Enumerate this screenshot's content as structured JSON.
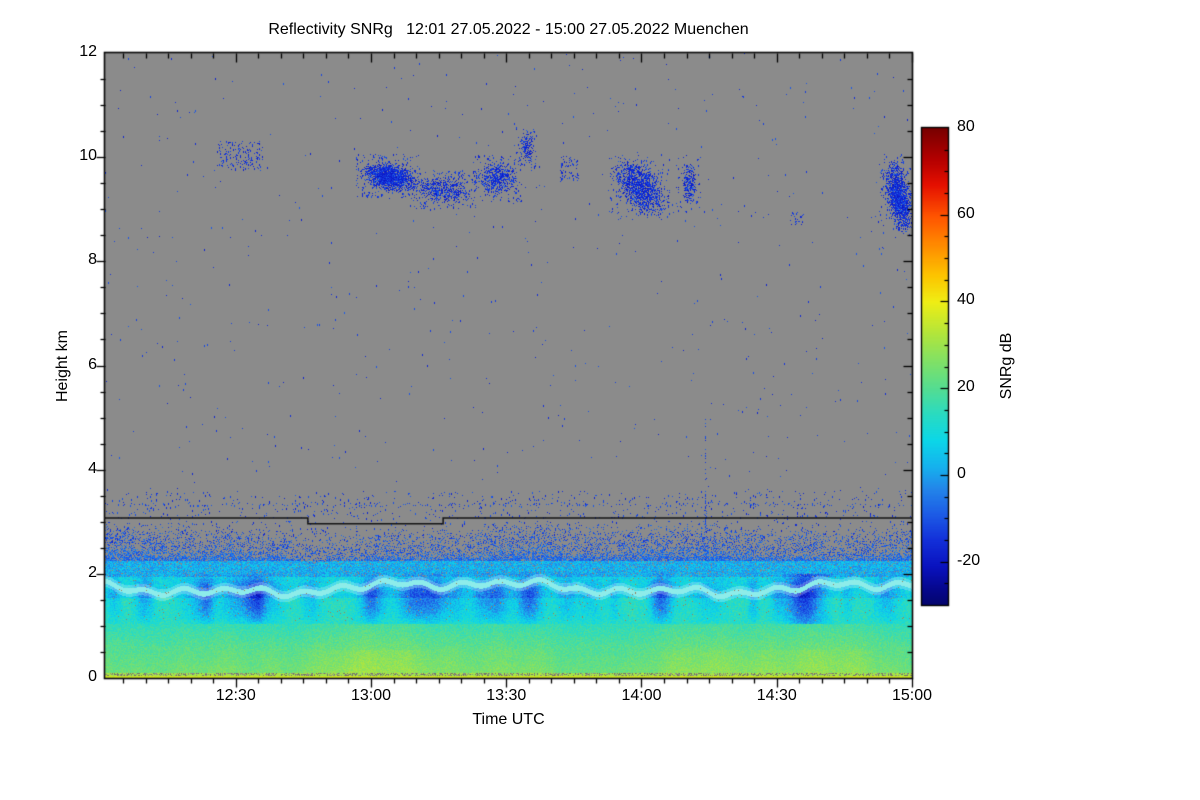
{
  "chart_data": {
    "type": "heatmap",
    "title": "Reflectivity SNRg   12:01 27.05.2022 - 15:00 27.05.2022 Muenchen",
    "xlabel": "Time UTC",
    "ylabel": "Height km",
    "station": "Muenchen",
    "time_start": "12:01 27.05.2022",
    "time_end": "15:00 27.05.2022",
    "x_start_minutes": 1,
    "x_end_minutes": 180,
    "x_major_ticks": [
      {
        "label": "12:30",
        "minutes": 30
      },
      {
        "label": "13:00",
        "minutes": 60
      },
      {
        "label": "13:30",
        "minutes": 90
      },
      {
        "label": "14:00",
        "minutes": 120
      },
      {
        "label": "14:30",
        "minutes": 150
      },
      {
        "label": "15:00",
        "minutes": 180
      }
    ],
    "x_minor_step_minutes": 5,
    "y_ticks": [
      0,
      2,
      4,
      6,
      8,
      10,
      12
    ],
    "y_minor_step_km": 0.5,
    "ylim": [
      0,
      12
    ],
    "grid": false,
    "legend_position": "right-colorbar",
    "colorbar": {
      "label": "SNRg dB",
      "range": [
        -30,
        80
      ],
      "major_ticks": [
        80,
        60,
        40,
        20,
        0,
        -20
      ],
      "minor_step": 5,
      "stops": [
        [
          -30,
          "#04056c"
        ],
        [
          -26,
          "#060890"
        ],
        [
          -21,
          "#0a13c0"
        ],
        [
          -15,
          "#1330da"
        ],
        [
          -9,
          "#1d5ce6"
        ],
        [
          -3,
          "#2387ea"
        ],
        [
          2,
          "#16b2ee"
        ],
        [
          8,
          "#0cd7e8"
        ],
        [
          14,
          "#2adbc2"
        ],
        [
          20,
          "#55dd92"
        ],
        [
          26,
          "#7fe168"
        ],
        [
          33,
          "#b5e63a"
        ],
        [
          40,
          "#f0ee15"
        ],
        [
          46,
          "#fdc500"
        ],
        [
          53,
          "#ff8c00"
        ],
        [
          60,
          "#ff5200"
        ],
        [
          67,
          "#e51000"
        ],
        [
          73,
          "#b30000"
        ],
        [
          80,
          "#790000"
        ]
      ]
    },
    "no_data_color": "#8b8b8b",
    "mixing_line": {
      "color": "#141414",
      "points_min_km": [
        [
          1,
          3.07
        ],
        [
          46,
          3.07
        ],
        [
          46,
          2.96
        ],
        [
          76,
          2.96
        ],
        [
          76,
          3.07
        ],
        [
          180,
          3.07
        ]
      ]
    },
    "generation": {
      "seed": 1337,
      "boundary_layer": {
        "top_km_base": 2.42,
        "top_km_variation": 0.17,
        "dome": {
          "t_center": 137,
          "t_sigma": 9,
          "extra_km": 0.22
        },
        "surface_db": 34,
        "low_db": 26,
        "mid_db": 14,
        "band_db": 9,
        "upper_db": 2,
        "fringe_db": -7,
        "yellow_boost_db": 5,
        "bright_band": {
          "h_km": 1.74,
          "amp_km": 0.16,
          "ripple_km": 0.05
        },
        "plumes": {
          "count": 36,
          "min_w": 5,
          "max_w": 18,
          "min_s": 6,
          "max_s": 13
        },
        "dark_patch": {
          "t0": 151,
          "t1": 163,
          "h0": 1.05,
          "h1": 2.0,
          "drop_db": 9
        }
      },
      "noise_specks": {
        "upper_region": {
          "h0": 3.6,
          "h1": 12.0,
          "count": 560
        },
        "band_above_line": {
          "h0": 3.05,
          "h1": 3.6,
          "count": 640
        },
        "band_below_line": {
          "h0": 2.62,
          "h1": 3.02,
          "count": 430
        },
        "speck_row": {
          "h_km": 3.33,
          "prob": 0.2
        }
      },
      "vertical_streak": {
        "t": 134,
        "h0": 2.25,
        "h1": 5.0
      },
      "cloud_patches": [
        {
          "t0": 26,
          "t1": 36,
          "h0": 9.75,
          "h1": 10.3,
          "density": 0.3,
          "mode": "scatter",
          "slant": 0
        },
        {
          "t0": 58,
          "t1": 70,
          "h0": 9.35,
          "h1": 9.9,
          "density": 0.88,
          "mode": "fill",
          "slant": -0.15
        },
        {
          "t0": 70,
          "t1": 82,
          "h0": 9.15,
          "h1": 9.6,
          "density": 0.55,
          "mode": "fill",
          "slant": -0.1
        },
        {
          "t0": 84,
          "t1": 92,
          "h0": 9.3,
          "h1": 9.9,
          "density": 0.6,
          "mode": "fill",
          "slant": 0
        },
        {
          "t0": 93,
          "t1": 96,
          "h0": 9.9,
          "h1": 10.5,
          "density": 0.5,
          "mode": "fill",
          "slant": 0
        },
        {
          "t0": 102,
          "t1": 106,
          "h0": 9.55,
          "h1": 10.0,
          "density": 0.35,
          "mode": "scatter",
          "slant": 0
        },
        {
          "t0": 114,
          "t1": 125,
          "h0": 8.95,
          "h1": 9.9,
          "density": 0.65,
          "mode": "fill",
          "slant": -0.55
        },
        {
          "t0": 129,
          "t1": 132,
          "h0": 9.1,
          "h1": 9.9,
          "density": 0.6,
          "mode": "fill",
          "slant": 0
        },
        {
          "t0": 153,
          "t1": 156,
          "h0": 8.7,
          "h1": 8.95,
          "density": 0.3,
          "mode": "scatter",
          "slant": 0
        },
        {
          "t0": 174,
          "t1": 180,
          "h0": 8.6,
          "h1": 9.9,
          "density": 0.85,
          "mode": "fill",
          "slant": -0.5
        }
      ]
    }
  }
}
